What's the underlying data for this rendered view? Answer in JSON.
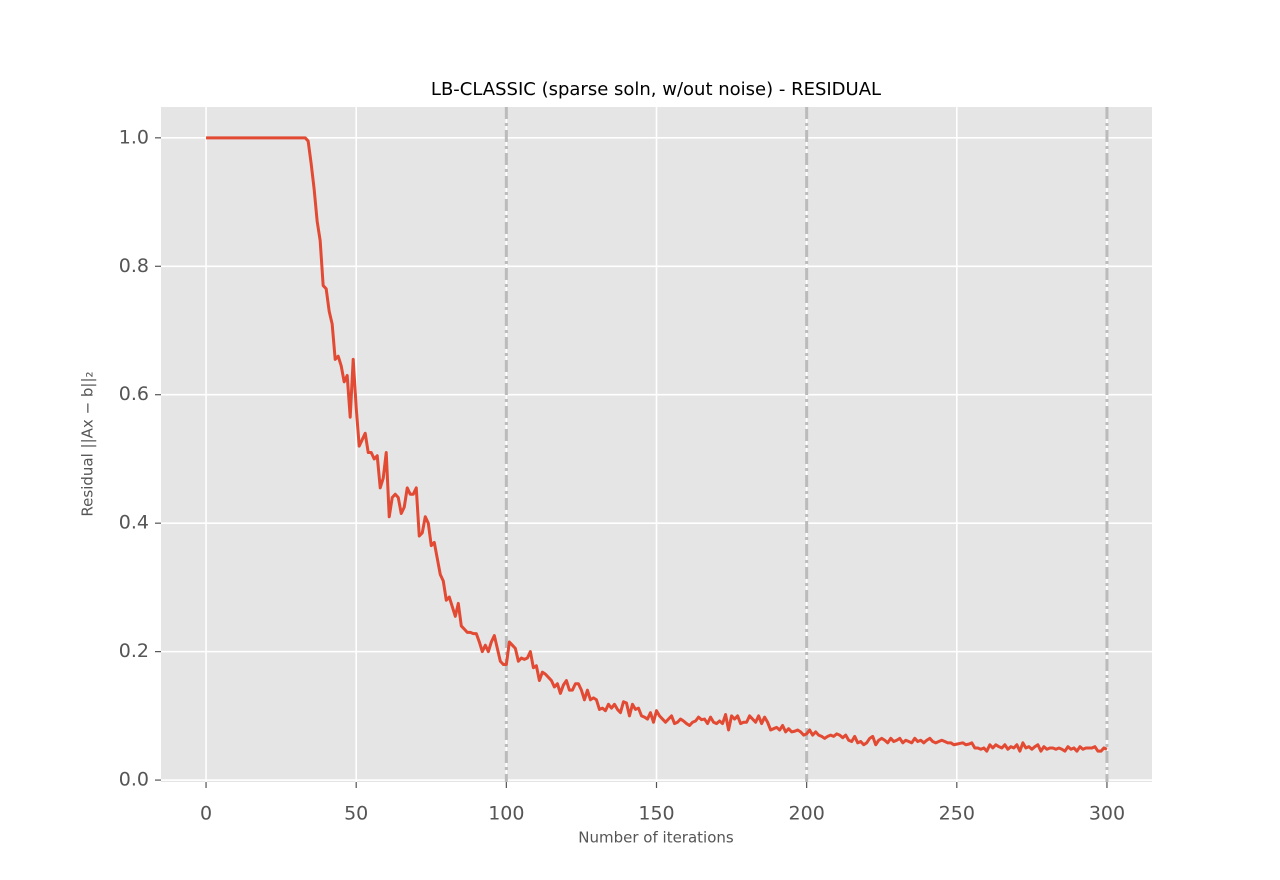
{
  "chart_data": {
    "type": "line",
    "title": "LB-CLASSIC (sparse soln, w/out noise) - RESIDUAL",
    "xlabel": "Number of iterations",
    "ylabel": "Residual ||Ax − b||₂",
    "color": "#e24a33",
    "grid": true,
    "vlines": [
      100,
      200,
      300
    ],
    "xlim": [
      -15,
      315
    ],
    "ylim": [
      -0.003,
      1.048
    ],
    "xticks": [
      0,
      50,
      100,
      150,
      200,
      250,
      300
    ],
    "yticks": [
      {
        "value": 0,
        "label": "0.0"
      },
      0.2,
      0.4,
      0.6,
      0.8,
      {
        "value": 1,
        "label": "1.0"
      }
    ],
    "x": [
      0,
      1,
      2,
      3,
      4,
      5,
      6,
      7,
      8,
      9,
      10,
      11,
      12,
      13,
      14,
      15,
      16,
      17,
      18,
      19,
      20,
      21,
      22,
      23,
      24,
      25,
      26,
      27,
      28,
      29,
      30,
      31,
      32,
      33,
      34,
      35,
      36,
      37,
      38,
      39,
      40,
      41,
      42,
      43,
      44,
      45,
      46,
      47,
      48,
      49,
      50,
      51,
      52,
      53,
      54,
      55,
      56,
      57,
      58,
      59,
      60,
      61,
      62,
      63,
      64,
      65,
      66,
      67,
      68,
      69,
      70,
      71,
      72,
      73,
      74,
      75,
      76,
      77,
      78,
      79,
      80,
      81,
      82,
      83,
      84,
      85,
      86,
      87,
      88,
      89,
      90,
      91,
      92,
      93,
      94,
      95,
      96,
      97,
      98,
      99,
      100,
      101,
      102,
      103,
      104,
      105,
      106,
      107,
      108,
      109,
      110,
      111,
      112,
      113,
      114,
      115,
      116,
      117,
      118,
      119,
      120,
      121,
      122,
      123,
      124,
      125,
      126,
      127,
      128,
      129,
      130,
      131,
      132,
      133,
      134,
      135,
      136,
      137,
      138,
      139,
      140,
      141,
      142,
      143,
      144,
      145,
      146,
      147,
      148,
      149,
      150,
      151,
      152,
      153,
      154,
      155,
      156,
      157,
      158,
      159,
      160,
      161,
      162,
      163,
      164,
      165,
      166,
      167,
      168,
      169,
      170,
      171,
      172,
      173,
      174,
      175,
      176,
      177,
      178,
      179,
      180,
      181,
      182,
      183,
      184,
      185,
      186,
      187,
      188,
      189,
      190,
      191,
      192,
      193,
      194,
      195,
      196,
      197,
      198,
      199,
      200,
      201,
      202,
      203,
      204,
      205,
      206,
      207,
      208,
      209,
      210,
      211,
      212,
      213,
      214,
      215,
      216,
      217,
      218,
      219,
      220,
      221,
      222,
      223,
      224,
      225,
      226,
      227,
      228,
      229,
      230,
      231,
      232,
      233,
      234,
      235,
      236,
      237,
      238,
      239,
      240,
      241,
      242,
      243,
      244,
      245,
      246,
      247,
      248,
      249,
      250,
      251,
      252,
      253,
      254,
      255,
      256,
      257,
      258,
      259,
      260,
      261,
      262,
      263,
      264,
      265,
      266,
      267,
      268,
      269,
      270,
      271,
      272,
      273,
      274,
      275,
      276,
      277,
      278,
      279,
      280,
      281,
      282,
      283,
      284,
      285,
      286,
      287,
      288,
      289,
      290,
      291,
      292,
      293,
      294,
      295,
      296,
      297,
      298,
      299,
      300
    ],
    "values": [
      1,
      1,
      1,
      1,
      1,
      1,
      1,
      1,
      1,
      1,
      1,
      1,
      1,
      1,
      1,
      1,
      1,
      1,
      1,
      1,
      1,
      1,
      1,
      1,
      1,
      1,
      1,
      1,
      1,
      1,
      1,
      1,
      1,
      1,
      0.995,
      0.96,
      0.92,
      0.87,
      0.84,
      0.77,
      0.765,
      0.73,
      0.71,
      0.655,
      0.66,
      0.645,
      0.62,
      0.63,
      0.565,
      0.655,
      0.58,
      0.52,
      0.53,
      0.54,
      0.51,
      0.51,
      0.5,
      0.505,
      0.455,
      0.47,
      0.51,
      0.41,
      0.44,
      0.445,
      0.44,
      0.415,
      0.425,
      0.455,
      0.445,
      0.445,
      0.455,
      0.38,
      0.385,
      0.41,
      0.4,
      0.365,
      0.37,
      0.345,
      0.32,
      0.31,
      0.28,
      0.285,
      0.27,
      0.255,
      0.275,
      0.24,
      0.235,
      0.23,
      0.23,
      0.228,
      0.228,
      0.215,
      0.2,
      0.21,
      0.2,
      0.215,
      0.225,
      0.205,
      0.185,
      0.18,
      0.18,
      0.215,
      0.21,
      0.205,
      0.185,
      0.19,
      0.188,
      0.19,
      0.2,
      0.175,
      0.178,
      0.155,
      0.168,
      0.165,
      0.16,
      0.155,
      0.145,
      0.15,
      0.135,
      0.148,
      0.155,
      0.14,
      0.14,
      0.15,
      0.15,
      0.14,
      0.125,
      0.14,
      0.125,
      0.128,
      0.125,
      0.11,
      0.112,
      0.108,
      0.118,
      0.112,
      0.118,
      0.11,
      0.105,
      0.122,
      0.12,
      0.1,
      0.118,
      0.11,
      0.112,
      0.1,
      0.098,
      0.095,
      0.105,
      0.09,
      0.108,
      0.1,
      0.095,
      0.09,
      0.095,
      0.1,
      0.088,
      0.09,
      0.095,
      0.092,
      0.088,
      0.085,
      0.09,
      0.092,
      0.098,
      0.094,
      0.095,
      0.088,
      0.098,
      0.09,
      0.088,
      0.092,
      0.088,
      0.102,
      0.078,
      0.1,
      0.095,
      0.1,
      0.088,
      0.09,
      0.09,
      0.1,
      0.095,
      0.09,
      0.1,
      0.088,
      0.098,
      0.09,
      0.078,
      0.08,
      0.082,
      0.078,
      0.085,
      0.075,
      0.08,
      0.075,
      0.076,
      0.078,
      0.075,
      0.07,
      0.072,
      0.078,
      0.07,
      0.075,
      0.07,
      0.068,
      0.065,
      0.068,
      0.07,
      0.068,
      0.072,
      0.07,
      0.066,
      0.07,
      0.062,
      0.06,
      0.068,
      0.058,
      0.06,
      0.055,
      0.058,
      0.065,
      0.068,
      0.055,
      0.062,
      0.065,
      0.062,
      0.058,
      0.065,
      0.06,
      0.062,
      0.065,
      0.058,
      0.062,
      0.06,
      0.058,
      0.065,
      0.06,
      0.062,
      0.058,
      0.062,
      0.065,
      0.06,
      0.058,
      0.06,
      0.062,
      0.06,
      0.058,
      0.058,
      0.055,
      0.056,
      0.057,
      0.058,
      0.055,
      0.056,
      0.058,
      0.05,
      0.05,
      0.048,
      0.05,
      0.045,
      0.055,
      0.05,
      0.055,
      0.052,
      0.05,
      0.055,
      0.048,
      0.052,
      0.05,
      0.055,
      0.045,
      0.058,
      0.05,
      0.052,
      0.048,
      0.052,
      0.055,
      0.045,
      0.052,
      0.048,
      0.05,
      0.05,
      0.048,
      0.05,
      0.048,
      0.045,
      0.052,
      0.048,
      0.05,
      0.045,
      0.052,
      0.048,
      0.05,
      0.05,
      0.05,
      0.052,
      0.045,
      0.045,
      0.05,
      0.048
    ]
  }
}
